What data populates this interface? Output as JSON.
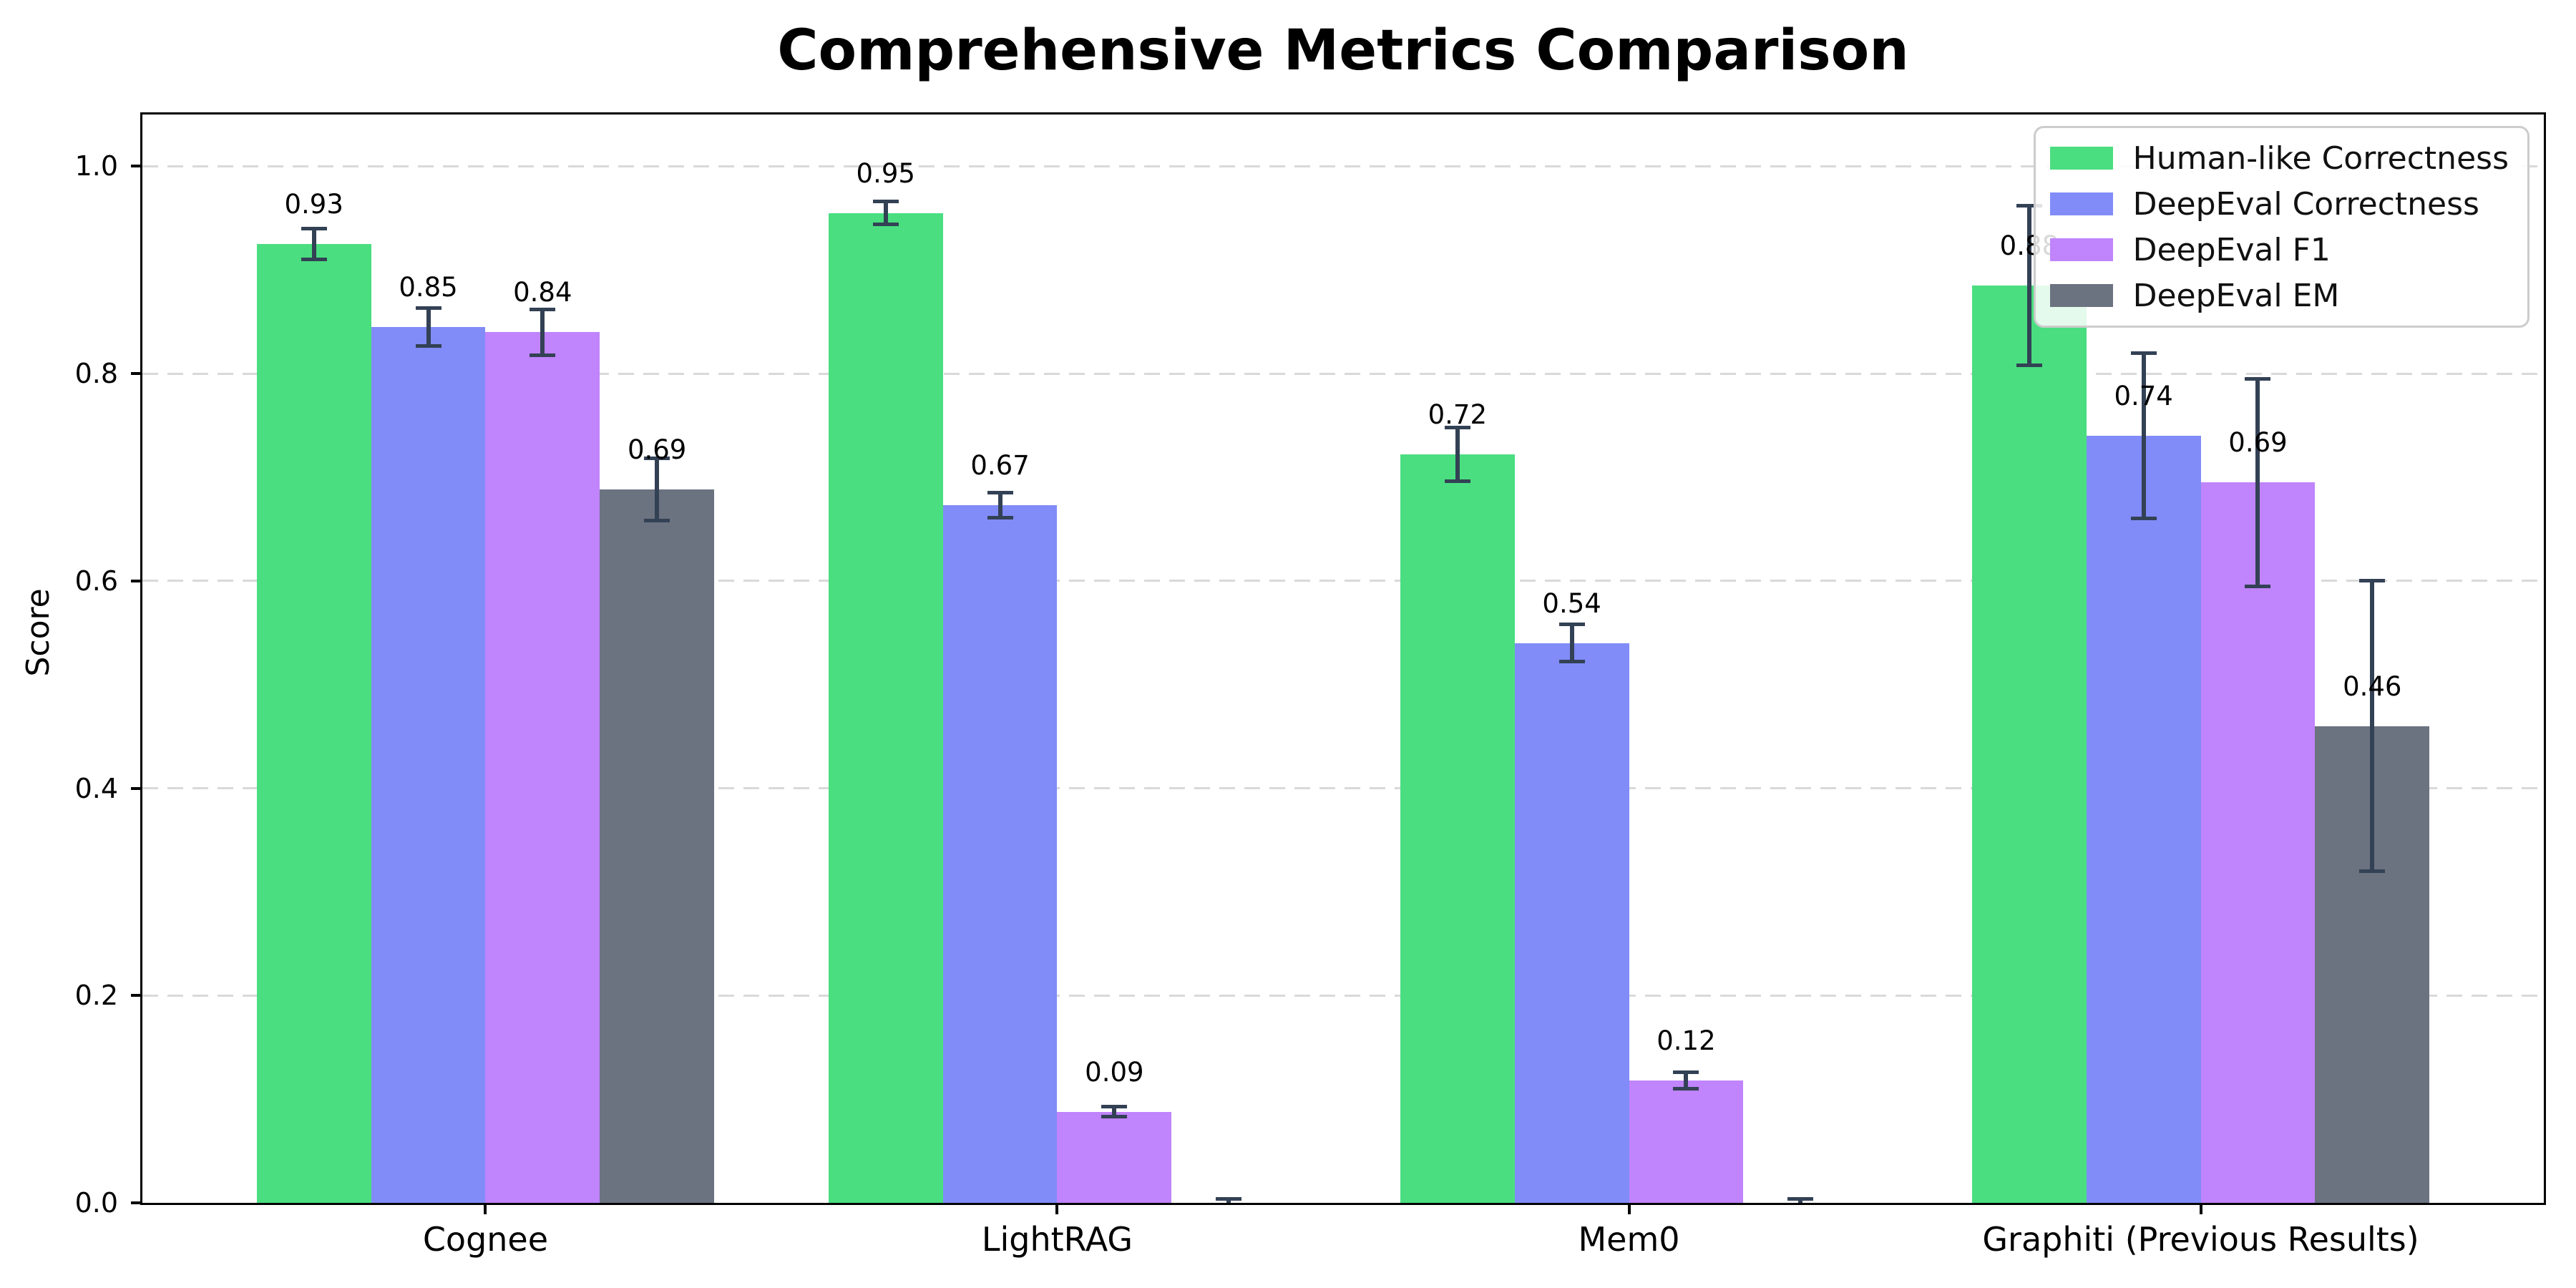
{
  "chart_data": {
    "type": "bar",
    "title": "Comprehensive Metrics Comparison",
    "ylabel": "Score",
    "xlabel": "",
    "categories": [
      "Cognee",
      "LightRAG",
      "Mem0",
      "Graphiti (Previous Results)"
    ],
    "series": [
      {
        "name": "Human-like Correctness",
        "color": "#4ade80",
        "values": [
          0.925,
          0.955,
          0.722,
          0.885
        ],
        "errors": [
          0.015,
          0.011,
          0.026,
          0.077
        ],
        "labels": [
          "0.93",
          "0.95",
          "0.72",
          "0.88"
        ]
      },
      {
        "name": "DeepEval Correctness",
        "color": "#818cf8",
        "values": [
          0.845,
          0.673,
          0.54,
          0.74
        ],
        "errors": [
          0.018,
          0.012,
          0.018,
          0.08
        ],
        "labels": [
          "0.85",
          "0.67",
          "0.54",
          "0.74"
        ]
      },
      {
        "name": "DeepEval F1",
        "color": "#c084fc",
        "values": [
          0.84,
          0.088,
          0.118,
          0.695
        ],
        "errors": [
          0.022,
          0.005,
          0.008,
          0.1
        ],
        "labels": [
          "0.84",
          "0.09",
          "0.12",
          "0.69"
        ]
      },
      {
        "name": "DeepEval EM",
        "color": "#6b7280",
        "values": [
          0.688,
          0.0,
          0.0,
          0.46
        ],
        "errors": [
          0.03,
          0.004,
          0.004,
          0.14
        ],
        "labels": [
          "0.69",
          "",
          "",
          "0.46"
        ]
      }
    ],
    "yticks": [
      "0.0",
      "0.2",
      "0.4",
      "0.6",
      "0.8",
      "1.0"
    ],
    "ylim": [
      0,
      1.05
    ],
    "xlim": [
      -0.6,
      3.6
    ],
    "bar_width": 0.2,
    "grid": "horizontal-dashed",
    "legend_position": "upper-right",
    "colors": {
      "error_bar": "#334155",
      "grid_line": "#d9d9d9",
      "axis": "#000000",
      "legend_border": "#cccccc",
      "legend_background": "rgba(255,255,255,0.85)",
      "background": "#ffffff"
    }
  }
}
